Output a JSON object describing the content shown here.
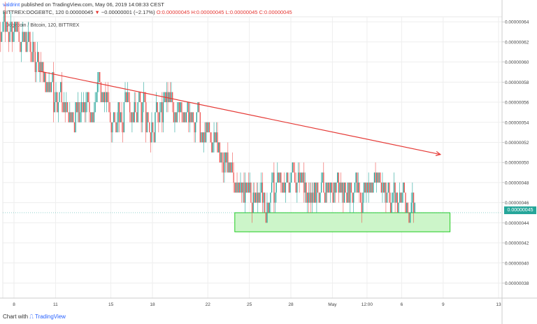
{
  "header": {
    "author": "valdrint",
    "published_text": "published on TradingView.com, May 06, 2019 14:08:33 CEST",
    "symbol": "BITTREX:DOGEBTC, 120",
    "last_price": "0.00000045",
    "change_arrow": "▼",
    "change_text": "−0.00000001 (−2.17%)",
    "open": "O:0.00000045",
    "high": "H:0.00000045",
    "low": "L:0.00000045",
    "close": "C:0.00000045"
  },
  "footer": {
    "chart_with_text": "Chart with",
    "tradingview_label": "TradingView"
  },
  "price_badge": "0.00000045",
  "colors": {
    "up": "#26a69a",
    "down": "#ef5350",
    "trendline": "#e53935",
    "support_zone_fill": "#ccf5c9",
    "support_zone_border": "#22cc22"
  },
  "chart_data": {
    "type": "candlestick",
    "title": "Dogecoin / Bitcoin, 120, BITTREX",
    "x_tick_labels": [
      "8",
      "11",
      "15",
      "18",
      "22",
      "25",
      "28",
      "May",
      "12:00",
      "6",
      "9",
      "13"
    ],
    "y_tick_labels": [
      "0.00000064",
      "0.00000062",
      "0.00000060",
      "0.00000058",
      "0.00000056",
      "0.00000054",
      "0.00000052",
      "0.00000050",
      "0.00000048",
      "0.00000046",
      "0.00000044",
      "0.00000042",
      "0.00000040",
      "0.00000038"
    ],
    "ylim": [
      3.65e-07,
      6.45e-07
    ],
    "approx_close_path": [
      {
        "day": "Apr 7",
        "close": 6.3e-07
      },
      {
        "day": "Apr 8",
        "close": 6.2e-07
      },
      {
        "day": "Apr 9",
        "close": 5.9e-07
      },
      {
        "day": "Apr 10",
        "close": 5.6e-07
      },
      {
        "day": "Apr 11",
        "close": 5.5e-07
      },
      {
        "day": "Apr 12",
        "close": 5.5e-07
      },
      {
        "day": "Apr 13",
        "close": 5.5e-07
      },
      {
        "day": "Apr 14",
        "close": 5.5e-07
      },
      {
        "day": "Apr 15",
        "close": 5.5e-07
      },
      {
        "day": "Apr 16",
        "close": 5.5e-07
      },
      {
        "day": "Apr 17",
        "close": 5.3e-07
      },
      {
        "day": "Apr 18",
        "close": 5.6e-07
      },
      {
        "day": "Apr 19",
        "close": 5.5e-07
      },
      {
        "day": "Apr 20",
        "close": 5.4e-07
      },
      {
        "day": "Apr 21",
        "close": 5.3e-07
      },
      {
        "day": "Apr 22",
        "close": 5.1e-07
      },
      {
        "day": "Apr 23",
        "close": 4.9e-07
      },
      {
        "day": "Apr 24",
        "close": 4.7e-07
      },
      {
        "day": "Apr 25",
        "close": 4.6e-07
      },
      {
        "day": "Apr 26",
        "close": 4.7e-07
      },
      {
        "day": "Apr 27",
        "close": 4.8e-07
      },
      {
        "day": "Apr 28",
        "close": 4.8e-07
      },
      {
        "day": "Apr 29",
        "close": 4.7e-07
      },
      {
        "day": "Apr 30",
        "close": 4.7e-07
      },
      {
        "day": "May 1",
        "close": 4.7e-07
      },
      {
        "day": "May 2",
        "close": 4.8e-07
      },
      {
        "day": "May 3",
        "close": 4.7e-07
      },
      {
        "day": "May 4",
        "close": 4.7e-07
      },
      {
        "day": "May 5",
        "close": 4.6e-07
      },
      {
        "day": "May 6",
        "close": 4.5e-07
      }
    ],
    "trendline": {
      "from": {
        "day": "Apr 10",
        "price": 5.91e-07
      },
      "to": {
        "day": "May 9",
        "price": 5.08e-07
      }
    },
    "support_zone": {
      "from_day": "Apr 24",
      "to_day": "May 10",
      "low": 4.31e-07,
      "high": 4.5e-07
    },
    "grid": true
  }
}
